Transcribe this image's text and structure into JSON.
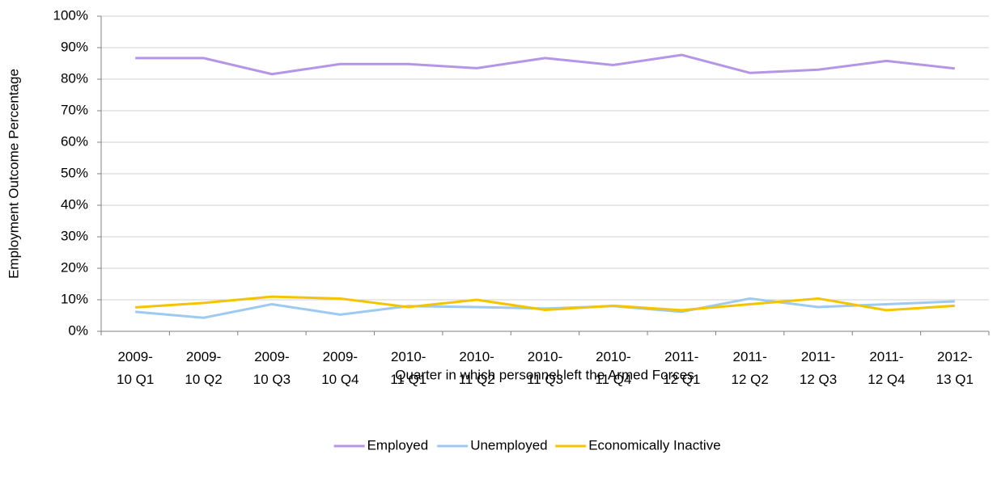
{
  "chart_data": {
    "type": "line",
    "categories": [
      "2009-\n10 Q1",
      "2009-\n10 Q2",
      "2009-\n10 Q3",
      "2009-\n10 Q4",
      "2010-\n11 Q1",
      "2010-\n11 Q2",
      "2010-\n11 Q3",
      "2010-\n11 Q4",
      "2011-\n12 Q1",
      "2011-\n12 Q2",
      "2011-\n12 Q3",
      "2011-\n12 Q4",
      "2012-\n13 Q1"
    ],
    "series": [
      {
        "name": "Employed",
        "color": "#b596e6",
        "values": [
          86.7,
          86.7,
          81.6,
          84.8,
          84.8,
          83.5,
          86.7,
          84.5,
          87.7,
          82.0,
          83.0,
          85.8,
          83.4
        ]
      },
      {
        "name": "Unemployed",
        "color": "#9ec9f0",
        "values": [
          6.2,
          4.3,
          8.6,
          5.3,
          8.0,
          7.7,
          7.2,
          8.0,
          6.2,
          10.4,
          7.7,
          8.6,
          9.5
        ]
      },
      {
        "name": "Economically Inactive",
        "color": "#f5c400",
        "values": [
          7.6,
          9.0,
          11.0,
          10.4,
          7.7,
          10.0,
          6.8,
          8.1,
          6.7,
          8.6,
          10.4,
          6.7,
          8.1
        ]
      }
    ],
    "xlabel": "Quarter in which personnel left the Armed Forces",
    "ylabel": "Employment Outcome Percentage",
    "ylim": [
      0,
      100
    ],
    "yticks": [
      {
        "value": 0,
        "label": "0%"
      },
      {
        "value": 10,
        "label": "10%"
      },
      {
        "value": 20,
        "label": "20%"
      },
      {
        "value": 30,
        "label": "30%"
      },
      {
        "value": 40,
        "label": "40%"
      },
      {
        "value": 50,
        "label": "50%"
      },
      {
        "value": 60,
        "label": "60%"
      },
      {
        "value": 70,
        "label": "70%"
      },
      {
        "value": 80,
        "label": "80%"
      },
      {
        "value": 90,
        "label": "90%"
      },
      {
        "value": 100,
        "label": "100%"
      }
    ],
    "grid": true,
    "legend": "bottom"
  }
}
